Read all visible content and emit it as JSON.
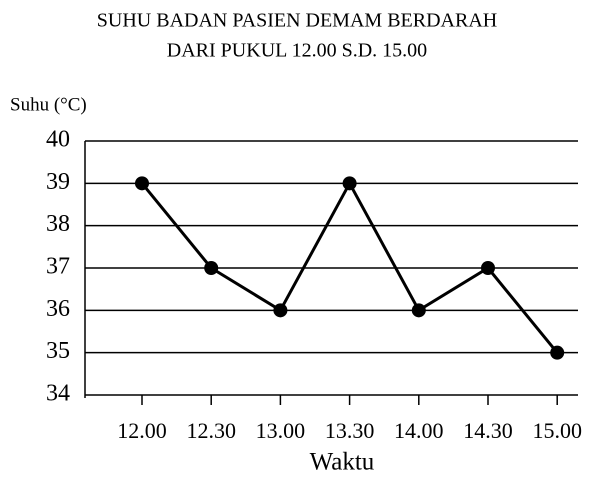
{
  "chart_data": {
    "type": "line",
    "title": [
      "SUHU BADAN PASIEN DEMAM BERDARAH",
      "DARI PUKUL 12.00 S.D. 15.00"
    ],
    "y_label": "Suhu (°C)",
    "x_label": "Waktu",
    "categories": [
      "12.00",
      "12.30",
      "13.00",
      "13.30",
      "14.00",
      "14.30",
      "15.00"
    ],
    "series": [
      {
        "color": "#000000",
        "values": [
          39,
          37,
          36,
          39,
          36,
          37,
          35
        ]
      }
    ],
    "ylim": [
      34,
      40
    ],
    "yticks": [
      34,
      35,
      36,
      37,
      38,
      39,
      40
    ],
    "grid": true
  }
}
